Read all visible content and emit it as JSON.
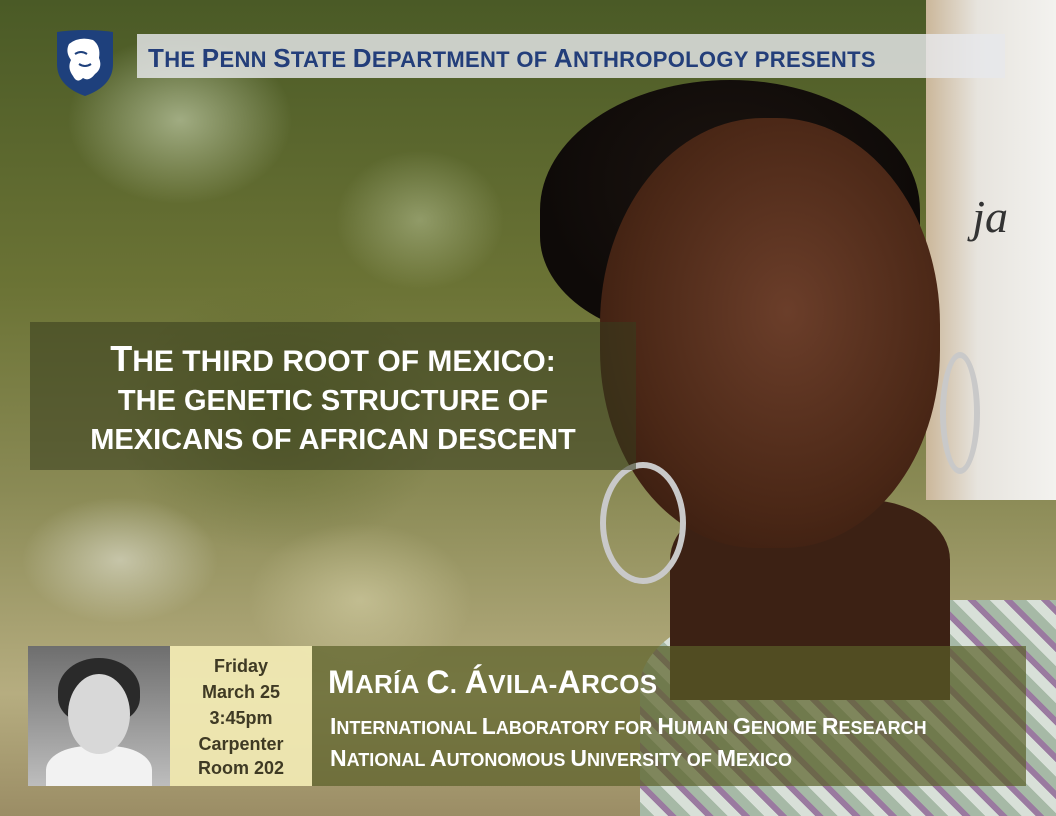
{
  "header": {
    "presents_text": "The Penn State Department of Anthropology presents"
  },
  "logo": {
    "icon": "nittany-lion-shield-icon",
    "color": "#1e407c"
  },
  "talk": {
    "title_line1": "The third root of mexico:",
    "title_line2": "the genetic structure of",
    "title_line3": "mexicans of african descent"
  },
  "event": {
    "day": "Friday",
    "date": "March 25",
    "time": "3:45pm",
    "building": "Carpenter",
    "room": "Room 202"
  },
  "speaker": {
    "name": "María C. Ávila-Arcos",
    "affiliation_line1": "International Laboratory for Human Genome Research",
    "affiliation_line2": "National Autonomous University of Mexico"
  },
  "colors": {
    "header_text": "#233e7a",
    "date_box": "#f2eab4",
    "info_box": "#5a5f28"
  }
}
